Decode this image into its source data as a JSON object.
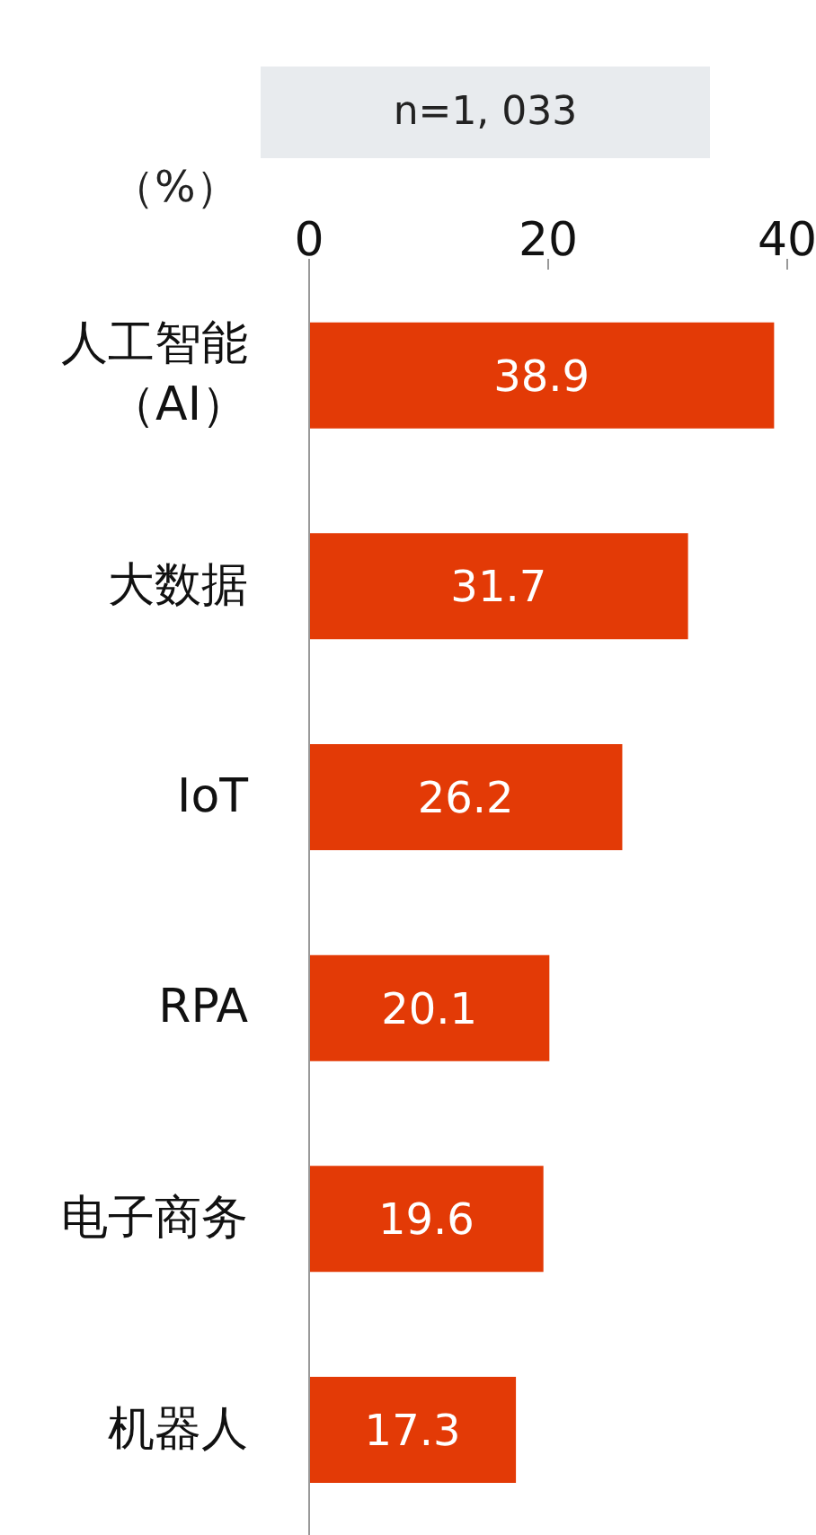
{
  "chart_data": {
    "type": "bar",
    "orientation": "horizontal",
    "subtitle": "n=1, 033",
    "xlabel": "（%）",
    "categories": [
      "人工智能（AI）",
      "大数据",
      "IoT",
      "RPA",
      "电子商务",
      "机器人"
    ],
    "values": [
      38.9,
      31.7,
      26.2,
      20.1,
      19.6,
      17.3
    ],
    "color": "#e33a06",
    "xlim": [
      0,
      40
    ],
    "xticks": [
      0,
      20,
      40
    ],
    "data_labels": true
  }
}
